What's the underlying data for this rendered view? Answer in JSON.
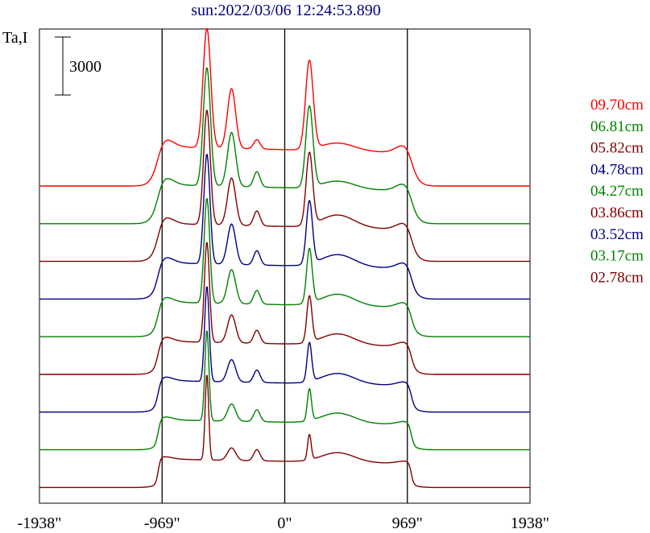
{
  "chart_data": {
    "type": "line",
    "title": "sun:2022/03/06 12:24:53.890",
    "ylabel": "Ta,I",
    "scale_bar_label": "3000",
    "scale_bar_value": 3000,
    "x_ticks": [
      {
        "value": -1938,
        "label": "-1938\""
      },
      {
        "value": -969,
        "label": "-969\""
      },
      {
        "value": 0,
        "label": "0\""
      },
      {
        "value": 969,
        "label": "969\""
      },
      {
        "value": 1938,
        "label": "1938\""
      }
    ],
    "x_range": [
      -1938,
      1938
    ],
    "vertical_lines": [
      -969,
      0,
      969
    ],
    "series": [
      {
        "name": "09.70cm",
        "color": "#ff0000",
        "base": 0,
        "peak": 1.0
      },
      {
        "name": "06.81cm",
        "color": "#008000",
        "base": 1,
        "peak": 0.99
      },
      {
        "name": "05.82cm",
        "color": "#800000",
        "base": 2,
        "peak": 0.96
      },
      {
        "name": "04.78cm",
        "color": "#000080",
        "base": 3,
        "peak": 0.92
      },
      {
        "name": "04.27cm",
        "color": "#008000",
        "base": 4,
        "peak": 0.88
      },
      {
        "name": "03.86cm",
        "color": "#800000",
        "base": 5,
        "peak": 0.84
      },
      {
        "name": "03.52cm",
        "color": "#000080",
        "base": 6,
        "peak": 0.8
      },
      {
        "name": "03.17cm",
        "color": "#008000",
        "base": 7,
        "peak": 0.76
      },
      {
        "name": "02.78cm",
        "color": "#800000",
        "base": 8,
        "peak": 0.72
      }
    ]
  }
}
